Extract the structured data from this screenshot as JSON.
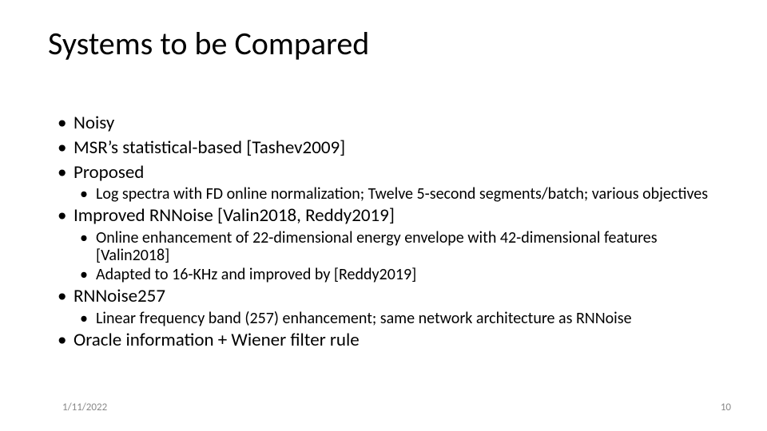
{
  "title": "Systems to be Compared",
  "bullets": {
    "b1": "Noisy",
    "b2": "MSR’s statistical-based [Tashev2009]",
    "b3": "Proposed",
    "b3_1": "Log spectra with FD online normalization; Twelve 5-second segments/batch; various objectives",
    "b4": "Improved RNNoise [Valin2018, Reddy2019]",
    "b4_1": "Online enhancement of 22-dimensional energy envelope with 42-dimensional features [Valin2018]",
    "b4_2": "Adapted to 16-KHz and improved by [Reddy2019]",
    "b5": "RNNoise257",
    "b5_1": "Linear frequency band (257) enhancement; same network architecture as RNNoise",
    "b6": "Oracle information + Wiener filter rule"
  },
  "footer": {
    "date": "1/11/2022",
    "page": "10"
  },
  "style": {
    "background_color": "#ffffff",
    "text_color": "#000000",
    "footer_color": "#8a8a8a",
    "title_fontsize": 40,
    "lvl1_fontsize": 23,
    "lvl2_fontsize": 20,
    "footer_fontsize": 13,
    "font_family": "Calibri"
  }
}
